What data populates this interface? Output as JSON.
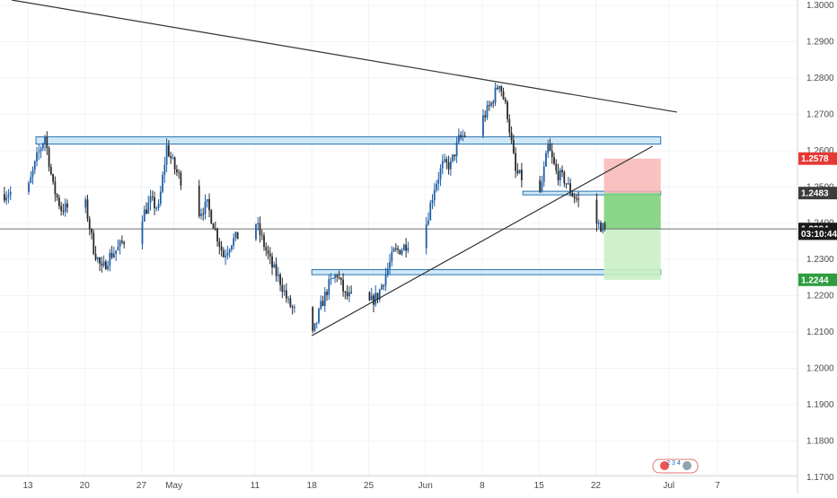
{
  "chart_data": {
    "type": "candlestick",
    "y_axis": {
      "range": [
        1.1655,
        1.3015
      ],
      "ticks": [
        "1.3000",
        "1.2900",
        "1.2800",
        "1.2700",
        "1.2600",
        "1.2500",
        "1.2400",
        "1.2300",
        "1.2200",
        "1.2100",
        "1.2000",
        "1.1900",
        "1.1800",
        "1.1700"
      ]
    },
    "x_axis": {
      "tick_labels": [
        {
          "label": "13",
          "date": "2020-04-13"
        },
        {
          "label": "20",
          "date": "2020-04-20"
        },
        {
          "label": "27",
          "date": "2020-04-27"
        },
        {
          "label": "May",
          "date": "2020-05-01"
        },
        {
          "label": "11",
          "date": "2020-05-11"
        },
        {
          "label": "18",
          "date": "2020-05-18"
        },
        {
          "label": "25",
          "date": "2020-05-25"
        },
        {
          "label": "Jun",
          "date": "2020-06-01"
        },
        {
          "label": "8",
          "date": "2020-06-08"
        },
        {
          "label": "15",
          "date": "2020-06-15"
        },
        {
          "label": "22",
          "date": "2020-06-22"
        },
        {
          "label": "Jul",
          "date": "2020-07-01"
        },
        {
          "label": "7",
          "date": "2020-07-07"
        }
      ]
    },
    "price_path": [
      [
        "2020-04-10",
        1.248
      ],
      [
        "2020-04-13",
        1.25
      ],
      [
        "2020-04-14",
        1.258
      ],
      [
        "2020-04-15",
        1.264
      ],
      [
        "2020-04-16",
        1.25
      ],
      [
        "2020-04-17",
        1.244
      ],
      [
        "2020-04-20",
        1.245
      ],
      [
        "2020-04-21",
        1.233
      ],
      [
        "2020-04-22",
        1.227
      ],
      [
        "2020-04-23",
        1.231
      ],
      [
        "2020-04-24",
        1.233
      ],
      [
        "2020-04-27",
        1.242
      ],
      [
        "2020-04-28",
        1.246
      ],
      [
        "2020-04-29",
        1.244
      ],
      [
        "2020-04-30",
        1.261
      ],
      [
        "2020-05-01",
        1.255
      ],
      [
        "2020-05-04",
        1.243
      ],
      [
        "2020-05-05",
        1.245
      ],
      [
        "2020-05-06",
        1.238
      ],
      [
        "2020-05-07",
        1.231
      ],
      [
        "2020-05-08",
        1.235
      ],
      [
        "2020-05-11",
        1.24
      ],
      [
        "2020-05-12",
        1.234
      ],
      [
        "2020-05-13",
        1.228
      ],
      [
        "2020-05-14",
        1.224
      ],
      [
        "2020-05-15",
        1.218
      ],
      [
        "2020-05-18",
        1.209
      ],
      [
        "2020-05-19",
        1.217
      ],
      [
        "2020-05-20",
        1.223
      ],
      [
        "2020-05-21",
        1.226
      ],
      [
        "2020-05-22",
        1.22
      ],
      [
        "2020-05-25",
        1.218
      ],
      [
        "2020-05-26",
        1.22
      ],
      [
        "2020-05-27",
        1.226
      ],
      [
        "2020-05-28",
        1.232
      ],
      [
        "2020-05-29",
        1.233
      ],
      [
        "2020-06-01",
        1.24
      ],
      [
        "2020-06-02",
        1.25
      ],
      [
        "2020-06-03",
        1.256
      ],
      [
        "2020-06-04",
        1.256
      ],
      [
        "2020-06-05",
        1.263
      ],
      [
        "2020-06-08",
        1.269
      ],
      [
        "2020-06-09",
        1.273
      ],
      [
        "2020-06-10",
        1.279
      ],
      [
        "2020-06-11",
        1.27
      ],
      [
        "2020-06-12",
        1.254
      ],
      [
        "2020-06-15",
        1.248
      ],
      [
        "2020-06-16",
        1.261
      ],
      [
        "2020-06-17",
        1.254
      ],
      [
        "2020-06-18",
        1.252
      ],
      [
        "2020-06-19",
        1.248
      ],
      [
        "2020-06-22",
        1.24
      ],
      [
        "2020-06-23",
        1.2384
      ]
    ],
    "zones": [
      {
        "from": "2020-04-14",
        "to": "2020-06-30",
        "top": 1.2638,
        "bottom": 1.2618,
        "color": "#cfe8f7"
      },
      {
        "from": "2020-06-13",
        "to": "2020-06-30",
        "top": 1.2488,
        "bottom": 1.2478,
        "color": "#cfe8f7"
      },
      {
        "from": "2020-05-18",
        "to": "2020-06-30",
        "top": 1.2272,
        "bottom": 1.2258,
        "color": "#cfe8f7"
      }
    ],
    "trendlines": [
      {
        "from": [
          "2020-04-11",
          1.3015
        ],
        "to": [
          "2020-07-02",
          1.2706
        ]
      },
      {
        "from": [
          "2020-05-18",
          1.209
        ],
        "to": [
          "2020-06-29",
          1.2612
        ]
      }
    ],
    "position": {
      "from": "2020-06-23",
      "to": "2020-06-30",
      "entry": 1.2483,
      "stop": 1.2578,
      "target": 1.2244,
      "current": 1.2384
    },
    "price_tags": [
      {
        "label": "1.2578",
        "value": 1.2578,
        "color": "#e53935"
      },
      {
        "label": "1.2483",
        "value": 1.2483,
        "color": "#3c3c3c"
      },
      {
        "label": "1.2384",
        "value": 1.2384,
        "color": "#1a1a1a"
      },
      {
        "label": "03:10:44",
        "value": 1.2371,
        "color": "#1a1a1a"
      },
      {
        "label": "1.2244",
        "value": 1.2244,
        "color": "#2e9d3e"
      }
    ],
    "colors": {
      "bull": "#1f5fa8",
      "bear": "#2a2a2a",
      "grid": "#f0f3f5",
      "stop_zone": "#f9b6b6",
      "profit_zone_strong": "#7fd17c",
      "profit_zone_light": "#c9efc4"
    }
  },
  "watermark": {
    "text": "2 3 4"
  }
}
